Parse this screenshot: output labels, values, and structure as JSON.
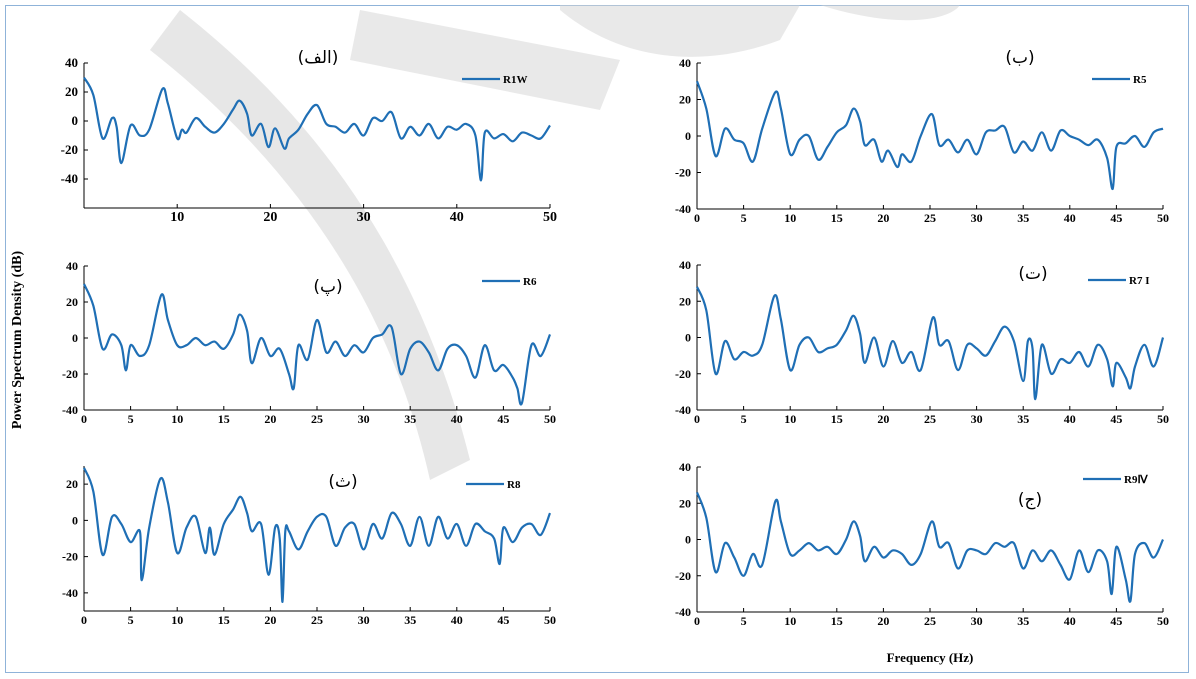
{
  "figure": {
    "ylabel": "Power Spectrum Density (dB)",
    "xlabel": "Frequency (Hz)",
    "line_color": "#1f6fb5"
  },
  "chart_data": [
    {
      "type": "line",
      "panel_label": "(الف)",
      "series": [
        {
          "name": "R1W"
        }
      ],
      "xlim": [
        0,
        50
      ],
      "ylim": [
        -60,
        40
      ],
      "xticks": [
        10,
        20,
        30,
        40,
        50
      ],
      "yticks": [
        40,
        20,
        0,
        -20,
        -40
      ],
      "x": [
        0,
        1,
        2,
        3,
        3.5,
        4,
        5,
        6,
        7,
        8.4,
        9,
        10,
        10.5,
        11,
        12,
        13,
        14,
        15,
        16,
        16.7,
        17.5,
        18,
        19,
        19.8,
        20.5,
        21.5,
        22,
        23,
        24,
        25,
        26,
        27,
        28,
        29,
        30,
        31,
        32,
        33,
        34,
        35,
        36,
        37,
        38,
        39,
        40,
        41,
        42,
        42.6,
        43,
        44,
        45,
        46,
        47,
        48,
        49,
        50
      ],
      "y": [
        30,
        18,
        -12,
        2,
        -4,
        -29,
        -3,
        -10,
        -6,
        22,
        12,
        -12,
        -6,
        -8,
        2,
        -4,
        -8,
        -2,
        8,
        14,
        5,
        -10,
        -2,
        -18,
        -5,
        -19,
        -12,
        -6,
        5,
        11,
        -2,
        -4,
        -8,
        -2,
        -10,
        2,
        0,
        6,
        -12,
        -4,
        -10,
        -2,
        -12,
        -4,
        -6,
        -2,
        -10,
        -41,
        -8,
        -12,
        -9,
        -14,
        -8,
        -10,
        -12,
        -3
      ]
    },
    {
      "type": "line",
      "panel_label": "(ب)",
      "series": [
        {
          "name": "R5"
        }
      ],
      "xlim": [
        0,
        50
      ],
      "ylim": [
        -40,
        40
      ],
      "xticks": [
        0,
        5,
        10,
        15,
        20,
        25,
        30,
        35,
        40,
        45,
        50
      ],
      "yticks": [
        40,
        20,
        0,
        -20,
        -40
      ],
      "x": [
        0,
        1,
        2,
        3,
        4,
        5,
        6,
        7,
        8.4,
        9,
        10,
        11,
        12,
        13,
        14,
        15,
        16,
        16.8,
        17.5,
        18,
        19,
        19.8,
        20.5,
        21.5,
        22,
        23,
        24,
        25.2,
        26,
        27,
        28,
        29,
        30,
        31,
        32,
        33,
        34,
        35,
        36,
        37,
        38,
        39,
        40,
        41,
        42,
        43,
        44,
        44.6,
        45,
        46,
        47,
        48,
        49,
        50
      ],
      "y": [
        30,
        15,
        -11,
        4,
        -2,
        -4,
        -14,
        4,
        24,
        15,
        -10,
        -2,
        0,
        -13,
        -6,
        2,
        6,
        15,
        8,
        -5,
        -2,
        -14,
        -8,
        -17,
        -10,
        -14,
        0,
        12,
        -5,
        -2,
        -9,
        -2,
        -10,
        2,
        3,
        5,
        -9,
        -3,
        -8,
        2,
        -8,
        3,
        0,
        -2,
        -5,
        -2,
        -12,
        -29,
        -6,
        -4,
        0,
        -6,
        2,
        4
      ]
    },
    {
      "type": "line",
      "panel_label": "(پ)",
      "series": [
        {
          "name": "R6"
        }
      ],
      "xlim": [
        0,
        50
      ],
      "ylim": [
        -40,
        40
      ],
      "xticks": [
        0,
        5,
        10,
        15,
        20,
        25,
        30,
        35,
        40,
        45,
        50
      ],
      "yticks": [
        40,
        20,
        0,
        -20,
        -40
      ],
      "x": [
        0,
        1,
        2,
        3,
        4,
        4.5,
        5,
        6,
        7,
        8.3,
        9,
        10,
        11,
        12,
        13,
        14,
        15,
        16,
        16.7,
        17.5,
        18,
        19,
        20,
        21,
        22,
        22.5,
        23,
        24,
        25,
        26,
        27,
        28,
        29,
        30,
        31,
        32,
        33,
        34,
        35,
        36,
        37,
        38,
        39,
        40,
        41,
        42,
        43,
        44,
        45,
        46,
        46.5,
        47,
        48,
        49,
        50
      ],
      "y": [
        30,
        18,
        -6,
        2,
        -4,
        -18,
        -4,
        -10,
        -4,
        24,
        10,
        -4,
        -4,
        0,
        -4,
        -2,
        -6,
        2,
        13,
        4,
        -14,
        0,
        -10,
        -6,
        -20,
        -28,
        -4,
        -12,
        10,
        -8,
        -2,
        -10,
        -4,
        -8,
        0,
        2,
        6,
        -20,
        -6,
        -2,
        -8,
        -18,
        -6,
        -4,
        -10,
        -22,
        -4,
        -18,
        -15,
        -22,
        -28,
        -36,
        -4,
        -10,
        2
      ]
    },
    {
      "type": "line",
      "panel_label": "(ت)",
      "series": [
        {
          "name": "R7 I"
        }
      ],
      "xlim": [
        0,
        50
      ],
      "ylim": [
        -40,
        40
      ],
      "xticks": [
        0,
        5,
        10,
        15,
        20,
        25,
        30,
        35,
        40,
        45,
        50
      ],
      "yticks": [
        40,
        20,
        0,
        -20,
        -40
      ],
      "x": [
        0,
        1,
        2,
        3,
        4,
        5,
        6,
        7,
        8.3,
        9,
        10,
        11,
        12,
        13,
        14,
        15,
        16,
        16.8,
        17.5,
        18,
        19,
        20,
        21,
        22,
        23,
        24,
        25.3,
        26,
        27,
        28,
        29,
        30,
        31,
        32,
        33,
        34,
        35,
        35.5,
        36,
        36.3,
        37,
        38,
        39,
        40,
        41,
        42,
        43,
        44,
        44.6,
        45,
        46,
        46.5,
        47,
        48,
        49,
        50
      ],
      "y": [
        28,
        15,
        -20,
        -2,
        -12,
        -8,
        -10,
        -4,
        23,
        10,
        -18,
        -4,
        0,
        -8,
        -6,
        -4,
        4,
        12,
        2,
        -14,
        0,
        -16,
        -2,
        -14,
        -8,
        -18,
        11,
        -4,
        -2,
        -18,
        -4,
        -6,
        -10,
        -2,
        6,
        -2,
        -24,
        -2,
        -6,
        -34,
        -4,
        -20,
        -12,
        -14,
        -8,
        -16,
        -4,
        -12,
        -27,
        -14,
        -22,
        -28,
        -16,
        -4,
        -16,
        0
      ]
    },
    {
      "type": "line",
      "panel_label": "(ث)",
      "series": [
        {
          "name": "R8"
        }
      ],
      "xlim": [
        0,
        50
      ],
      "ylim": [
        -50,
        30
      ],
      "xticks": [
        0,
        5,
        10,
        15,
        20,
        25,
        30,
        35,
        40,
        45,
        50
      ],
      "yticks": [
        20,
        0,
        -20,
        -40
      ],
      "x": [
        0,
        1,
        2,
        3,
        4,
        5,
        6,
        6.2,
        7,
        8.2,
        9,
        10,
        11,
        12,
        13,
        13.5,
        14,
        15,
        16,
        16.8,
        17.5,
        18,
        19,
        19.8,
        20.5,
        21,
        21.3,
        21.6,
        22,
        23,
        24,
        25,
        26,
        27,
        28,
        29,
        30,
        31,
        32,
        33,
        34,
        35,
        36,
        37,
        38,
        39,
        40,
        41,
        42,
        43,
        44,
        44.6,
        45,
        46,
        47,
        48,
        49,
        50
      ],
      "y": [
        29,
        16,
        -19,
        2,
        -2,
        -12,
        -6,
        -33,
        -4,
        23,
        10,
        -18,
        -4,
        2,
        -18,
        -4,
        -19,
        -2,
        6,
        13,
        4,
        -6,
        -2,
        -30,
        -4,
        -10,
        -45,
        -6,
        -6,
        -16,
        -6,
        2,
        2,
        -14,
        -4,
        -2,
        -16,
        -2,
        -10,
        4,
        -2,
        -14,
        2,
        -14,
        2,
        -10,
        -2,
        -14,
        -2,
        -6,
        -10,
        -24,
        -4,
        -12,
        -4,
        -2,
        -8,
        4
      ]
    },
    {
      "type": "line",
      "panel_label": "(ج)",
      "series": [
        {
          "name": "R9Ⅳ"
        }
      ],
      "xlim": [
        0,
        50
      ],
      "ylim": [
        -40,
        40
      ],
      "xticks": [
        0,
        5,
        10,
        15,
        20,
        25,
        30,
        35,
        40,
        45,
        50
      ],
      "yticks": [
        40,
        20,
        0,
        -20,
        -40
      ],
      "x": [
        0,
        1,
        2,
        3,
        4,
        5,
        6,
        7,
        8.4,
        9,
        10,
        11,
        12,
        13,
        14,
        15,
        16,
        16.8,
        17.5,
        18,
        19,
        20,
        21,
        22,
        23,
        24,
        25.2,
        26,
        27,
        28,
        29,
        30,
        31,
        32,
        33,
        34,
        35,
        36,
        37,
        38,
        39,
        40,
        41,
        42,
        43,
        44,
        44.5,
        45,
        46,
        46.5,
        47,
        48,
        49,
        50
      ],
      "y": [
        26,
        12,
        -18,
        -2,
        -10,
        -20,
        -8,
        -14,
        21,
        10,
        -8,
        -6,
        -2,
        -6,
        -4,
        -8,
        0,
        10,
        2,
        -12,
        -4,
        -10,
        -6,
        -8,
        -14,
        -8,
        10,
        -4,
        -2,
        -16,
        -6,
        -6,
        -8,
        -2,
        -4,
        -2,
        -16,
        -6,
        -12,
        -6,
        -14,
        -22,
        -6,
        -18,
        -6,
        -12,
        -30,
        -4,
        -22,
        -34,
        -8,
        -2,
        -10,
        0
      ]
    }
  ]
}
